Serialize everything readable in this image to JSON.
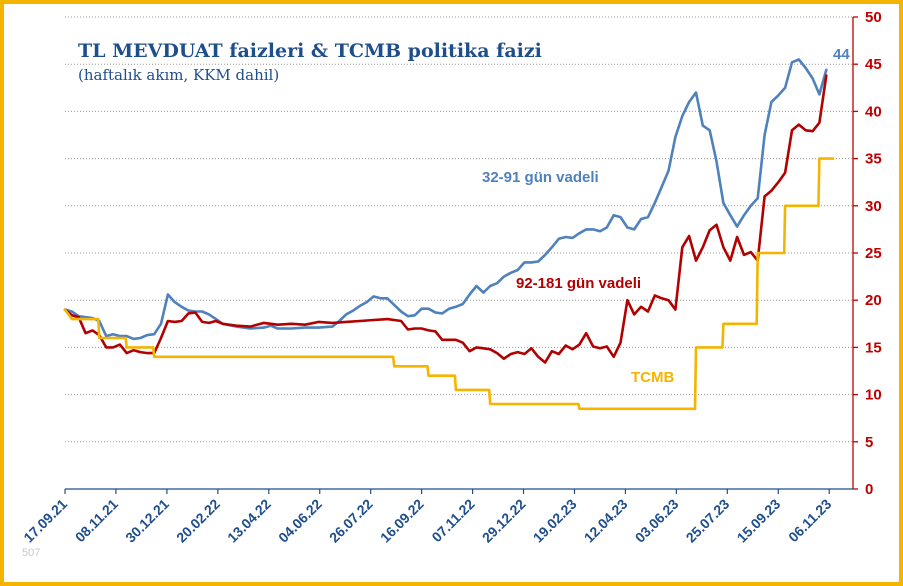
{
  "chart_data": {
    "type": "line",
    "title": "TL MEVDUAT  faizleri & TCMB politika faizi",
    "subtitle": "(haftalık akım, KKM dahil)",
    "ylim": [
      0,
      50
    ],
    "yticks": [
      0,
      5,
      10,
      15,
      20,
      25,
      30,
      35,
      40,
      45,
      50
    ],
    "y_axis_side": "right",
    "grid": "horizontal dotted",
    "x_range": [
      "17.09.21",
      "17.11.23"
    ],
    "xtick_labels": [
      "17.09.21",
      "08.11.21",
      "30.12.21",
      "20.02.22",
      "13.04.22",
      "04.06.22",
      "26.07.22",
      "16.09.22",
      "07.11.22",
      "29.12.22",
      "19.02.23",
      "12.04.23",
      "03.06.23",
      "25.07.23",
      "15.09.23",
      "06.11.23"
    ],
    "annotations": {
      "end_value": "44",
      "corner_note": "507"
    },
    "series": [
      {
        "name": "32-91 gün vadeli",
        "color": "#4f81bd",
        "points": [
          [
            "17.09.21",
            19
          ],
          [
            "24.09.21",
            18.8
          ],
          [
            "01.10.21",
            18.3
          ],
          [
            "08.10.21",
            18.2
          ],
          [
            "15.10.21",
            18.1
          ],
          [
            "22.10.21",
            17.8
          ],
          [
            "29.10.21",
            16.2
          ],
          [
            "05.11.21",
            16.4
          ],
          [
            "12.11.21",
            16.2
          ],
          [
            "19.11.21",
            16.2
          ],
          [
            "26.11.21",
            15.9
          ],
          [
            "03.12.21",
            16
          ],
          [
            "10.12.21",
            16.3
          ],
          [
            "17.12.21",
            16.4
          ],
          [
            "24.12.21",
            17.5
          ],
          [
            "31.12.21",
            20.6
          ],
          [
            "07.01.22",
            19.8
          ],
          [
            "14.01.22",
            19.3
          ],
          [
            "21.01.22",
            18.9
          ],
          [
            "28.01.22",
            18.8
          ],
          [
            "04.02.22",
            18.8
          ],
          [
            "11.02.22",
            18.5
          ],
          [
            "18.02.22",
            18
          ],
          [
            "25.02.22",
            17.5
          ],
          [
            "11.03.22",
            17.2
          ],
          [
            "25.03.22",
            17
          ],
          [
            "08.04.22",
            17.1
          ],
          [
            "15.04.22",
            17.3
          ],
          [
            "22.04.22",
            17
          ],
          [
            "06.05.22",
            17
          ],
          [
            "20.05.22",
            17.1
          ],
          [
            "03.06.22",
            17.1
          ],
          [
            "17.06.22",
            17.2
          ],
          [
            "24.06.22",
            17.8
          ],
          [
            "01.07.22",
            18.5
          ],
          [
            "08.07.22",
            18.9
          ],
          [
            "15.07.22",
            19.4
          ],
          [
            "22.07.22",
            19.8
          ],
          [
            "29.07.22",
            20.4
          ],
          [
            "05.08.22",
            20.2
          ],
          [
            "12.08.22",
            20.2
          ],
          [
            "19.08.22",
            19.5
          ],
          [
            "26.08.22",
            18.8
          ],
          [
            "02.09.22",
            18.3
          ],
          [
            "09.09.22",
            18.4
          ],
          [
            "16.09.22",
            19.1
          ],
          [
            "23.09.22",
            19.1
          ],
          [
            "30.09.22",
            18.7
          ],
          [
            "07.10.22",
            18.6
          ],
          [
            "14.10.22",
            19.1
          ],
          [
            "21.10.22",
            19.3
          ],
          [
            "28.10.22",
            19.6
          ],
          [
            "04.11.22",
            20.6
          ],
          [
            "11.11.22",
            21.5
          ],
          [
            "18.11.22",
            20.8
          ],
          [
            "25.11.22",
            21.5
          ],
          [
            "02.12.22",
            21.8
          ],
          [
            "09.12.22",
            22.5
          ],
          [
            "16.12.22",
            22.9
          ],
          [
            "23.12.22",
            23.2
          ],
          [
            "30.12.22",
            24
          ],
          [
            "06.01.23",
            24
          ],
          [
            "13.01.23",
            24.1
          ],
          [
            "20.01.23",
            24.8
          ],
          [
            "27.01.23",
            25.6
          ],
          [
            "03.02.23",
            26.5
          ],
          [
            "10.02.23",
            26.7
          ],
          [
            "17.02.23",
            26.6
          ],
          [
            "24.02.23",
            27.1
          ],
          [
            "03.03.23",
            27.5
          ],
          [
            "10.03.23",
            27.5
          ],
          [
            "17.03.23",
            27.3
          ],
          [
            "24.03.23",
            27.7
          ],
          [
            "31.03.23",
            29
          ],
          [
            "07.04.23",
            28.8
          ],
          [
            "14.04.23",
            27.7
          ],
          [
            "21.04.23",
            27.5
          ],
          [
            "28.04.23",
            28.6
          ],
          [
            "05.05.23",
            28.8
          ],
          [
            "12.05.23",
            30.3
          ],
          [
            "19.05.23",
            32
          ],
          [
            "26.05.23",
            33.7
          ],
          [
            "02.06.23",
            37.3
          ],
          [
            "09.06.23",
            39.5
          ],
          [
            "16.06.23",
            41
          ],
          [
            "23.06.23",
            42
          ],
          [
            "30.06.23",
            38.5
          ],
          [
            "07.07.23",
            38
          ],
          [
            "14.07.23",
            34.7
          ],
          [
            "21.07.23",
            30.3
          ],
          [
            "28.07.23",
            29
          ],
          [
            "04.08.23",
            27.8
          ],
          [
            "11.08.23",
            29
          ],
          [
            "18.08.23",
            30
          ],
          [
            "25.08.23",
            30.8
          ],
          [
            "01.09.23",
            37.5
          ],
          [
            "08.09.23",
            41
          ],
          [
            "15.09.23",
            41.7
          ],
          [
            "22.09.23",
            42.5
          ],
          [
            "29.09.23",
            45.2
          ],
          [
            "06.10.23",
            45.5
          ],
          [
            "13.10.23",
            44.6
          ],
          [
            "20.10.23",
            43.5
          ],
          [
            "27.10.23",
            41.8
          ],
          [
            "03.11.23",
            44.4
          ]
        ]
      },
      {
        "name": "92-181 gün vadeli",
        "color": "#b30000",
        "points": [
          [
            "17.09.21",
            19
          ],
          [
            "24.09.21",
            18.4
          ],
          [
            "01.10.21",
            18.2
          ],
          [
            "08.10.21",
            16.5
          ],
          [
            "15.10.21",
            16.8
          ],
          [
            "22.10.21",
            16.3
          ],
          [
            "29.10.21",
            15
          ],
          [
            "05.11.21",
            15
          ],
          [
            "12.11.21",
            15.3
          ],
          [
            "19.11.21",
            14.4
          ],
          [
            "26.11.21",
            14.7
          ],
          [
            "03.12.21",
            14.5
          ],
          [
            "10.12.21",
            14.4
          ],
          [
            "17.12.21",
            14.4
          ],
          [
            "24.12.21",
            16
          ],
          [
            "31.12.21",
            17.8
          ],
          [
            "07.01.22",
            17.7
          ],
          [
            "14.01.22",
            17.8
          ],
          [
            "21.01.22",
            18.6
          ],
          [
            "28.01.22",
            18.7
          ],
          [
            "04.02.22",
            17.7
          ],
          [
            "11.02.22",
            17.6
          ],
          [
            "18.02.22",
            17.8
          ],
          [
            "25.02.22",
            17.5
          ],
          [
            "11.03.22",
            17.3
          ],
          [
            "25.03.22",
            17.2
          ],
          [
            "08.04.22",
            17.6
          ],
          [
            "22.04.22",
            17.4
          ],
          [
            "06.05.22",
            17.5
          ],
          [
            "20.05.22",
            17.4
          ],
          [
            "03.06.22",
            17.7
          ],
          [
            "17.06.22",
            17.6
          ],
          [
            "01.07.22",
            17.7
          ],
          [
            "15.07.22",
            17.8
          ],
          [
            "29.07.22",
            17.9
          ],
          [
            "12.08.22",
            18
          ],
          [
            "19.08.22",
            17.9
          ],
          [
            "26.08.22",
            17.8
          ],
          [
            "02.09.22",
            16.9
          ],
          [
            "09.09.22",
            17
          ],
          [
            "16.09.22",
            17
          ],
          [
            "23.09.22",
            16.8
          ],
          [
            "30.09.22",
            16.7
          ],
          [
            "07.10.22",
            15.8
          ],
          [
            "14.10.22",
            15.8
          ],
          [
            "21.10.22",
            15.8
          ],
          [
            "28.10.22",
            15.5
          ],
          [
            "04.11.22",
            14.6
          ],
          [
            "11.11.22",
            15
          ],
          [
            "18.11.22",
            14.9
          ],
          [
            "25.11.22",
            14.8
          ],
          [
            "02.12.22",
            14.4
          ],
          [
            "09.12.22",
            13.8
          ],
          [
            "16.12.22",
            14.3
          ],
          [
            "23.12.22",
            14.5
          ],
          [
            "30.12.22",
            14.3
          ],
          [
            "06.01.23",
            14.9
          ],
          [
            "13.01.23",
            14
          ],
          [
            "20.01.23",
            13.4
          ],
          [
            "27.01.23",
            14.6
          ],
          [
            "03.02.23",
            14.3
          ],
          [
            "10.02.23",
            15.2
          ],
          [
            "17.02.23",
            14.8
          ],
          [
            "24.02.23",
            15.3
          ],
          [
            "03.03.23",
            16.5
          ],
          [
            "10.03.23",
            15.1
          ],
          [
            "17.03.23",
            14.9
          ],
          [
            "24.03.23",
            15.1
          ],
          [
            "31.03.23",
            14
          ],
          [
            "07.04.23",
            15.5
          ],
          [
            "14.04.23",
            20
          ],
          [
            "21.04.23",
            18.5
          ],
          [
            "28.04.23",
            19.3
          ],
          [
            "05.05.23",
            18.8
          ],
          [
            "12.05.23",
            20.5
          ],
          [
            "19.05.23",
            20.2
          ],
          [
            "26.05.23",
            20
          ],
          [
            "02.06.23",
            19
          ],
          [
            "09.06.23",
            25.6
          ],
          [
            "16.06.23",
            26.8
          ],
          [
            "23.06.23",
            24.2
          ],
          [
            "30.06.23",
            25.6
          ],
          [
            "07.07.23",
            27.4
          ],
          [
            "14.07.23",
            28
          ],
          [
            "21.07.23",
            25.6
          ],
          [
            "28.07.23",
            24.2
          ],
          [
            "04.08.23",
            26.7
          ],
          [
            "11.08.23",
            24.8
          ],
          [
            "18.08.23",
            25.1
          ],
          [
            "25.08.23",
            24.2
          ],
          [
            "01.09.23",
            31
          ],
          [
            "08.09.23",
            31.6
          ],
          [
            "15.09.23",
            32.5
          ],
          [
            "22.09.23",
            33.5
          ],
          [
            "29.09.23",
            38
          ],
          [
            "06.10.23",
            38.6
          ],
          [
            "13.10.23",
            38
          ],
          [
            "20.10.23",
            37.9
          ],
          [
            "27.10.23",
            38.8
          ],
          [
            "03.11.23",
            43.8
          ]
        ]
      },
      {
        "name": "TCMB",
        "color": "#f4b400",
        "points": [
          [
            "17.09.21",
            19
          ],
          [
            "24.09.21",
            18
          ],
          [
            "21.10.21",
            18
          ],
          [
            "22.10.21",
            16
          ],
          [
            "18.11.21",
            16
          ],
          [
            "19.11.21",
            15
          ],
          [
            "16.12.21",
            15
          ],
          [
            "17.12.21",
            14
          ],
          [
            "18.08.22",
            14
          ],
          [
            "19.08.22",
            13
          ],
          [
            "22.09.22",
            13
          ],
          [
            "23.09.22",
            12
          ],
          [
            "20.10.22",
            12
          ],
          [
            "21.10.22",
            10.5
          ],
          [
            "24.11.22",
            10.5
          ],
          [
            "25.11.22",
            9
          ],
          [
            "23.02.23",
            9
          ],
          [
            "24.02.23",
            8.5
          ],
          [
            "22.06.23",
            8.5
          ],
          [
            "23.06.23",
            15
          ],
          [
            "20.07.23",
            15
          ],
          [
            "21.07.23",
            17.5
          ],
          [
            "24.08.23",
            17.5
          ],
          [
            "25.08.23",
            25
          ],
          [
            "21.09.23",
            25
          ],
          [
            "22.09.23",
            30
          ],
          [
            "26.10.23",
            30
          ],
          [
            "27.10.23",
            35
          ],
          [
            "10.11.23",
            35
          ]
        ]
      }
    ]
  }
}
